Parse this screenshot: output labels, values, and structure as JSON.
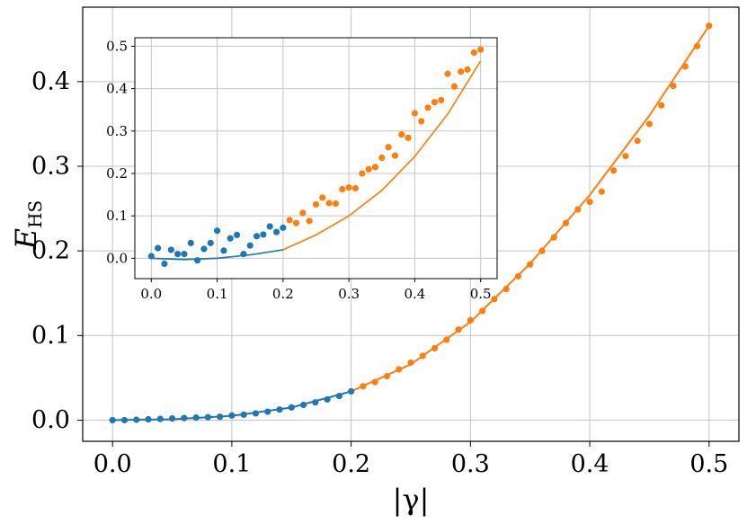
{
  "colors": {
    "blue": "#1f77b4",
    "orange": "#ff7f0e",
    "grid": "#c4c4c4",
    "axis": "#000000"
  },
  "chart_data": [
    {
      "type": "scatter",
      "role": "main",
      "xlabel": "|γ|",
      "ylabel": "E",
      "ylabel_subscript": "HS",
      "xlim": [
        -0.025,
        0.525
      ],
      "ylim": [
        -0.025,
        0.488
      ],
      "xticks": [
        0.0,
        0.1,
        0.2,
        0.3,
        0.4,
        0.5
      ],
      "xtick_labels": [
        "0.0",
        "0.1",
        "0.2",
        "0.3",
        "0.4",
        "0.5"
      ],
      "yticks": [
        0.0,
        0.1,
        0.2,
        0.3,
        0.4
      ],
      "ytick_labels": [
        "0.0",
        "0.1",
        "0.2",
        "0.3",
        "0.4"
      ],
      "grid": true,
      "series": [
        {
          "color": "blue",
          "kind": "points",
          "x": [
            0.0,
            0.01,
            0.02,
            0.03,
            0.04,
            0.05,
            0.06,
            0.07,
            0.08,
            0.09,
            0.1,
            0.11,
            0.12,
            0.13,
            0.14,
            0.15,
            0.16,
            0.17,
            0.18,
            0.19,
            0.2
          ],
          "y": [
            0.0,
            0.0,
            0.0005,
            0.001,
            0.0015,
            0.002,
            0.0025,
            0.003,
            0.0035,
            0.004,
            0.0055,
            0.0065,
            0.008,
            0.01,
            0.0125,
            0.015,
            0.018,
            0.021,
            0.0245,
            0.0285,
            0.034
          ]
        },
        {
          "color": "orange",
          "kind": "points",
          "x": [
            0.21,
            0.22,
            0.23,
            0.24,
            0.25,
            0.26,
            0.27,
            0.28,
            0.29,
            0.3,
            0.31,
            0.32,
            0.33,
            0.34,
            0.35,
            0.36,
            0.37,
            0.38,
            0.39,
            0.4,
            0.41,
            0.42,
            0.43,
            0.44,
            0.45,
            0.46,
            0.47,
            0.48,
            0.49,
            0.5
          ],
          "y": [
            0.04,
            0.045,
            0.052,
            0.06,
            0.068,
            0.076,
            0.085,
            0.095,
            0.107,
            0.118,
            0.129,
            0.143,
            0.155,
            0.17,
            0.184,
            0.2,
            0.216,
            0.233,
            0.249,
            0.258,
            0.27,
            0.295,
            0.312,
            0.33,
            0.35,
            0.372,
            0.395,
            0.418,
            0.442,
            0.466
          ]
        },
        {
          "color": "blue",
          "kind": "line",
          "x": [
            0.0,
            0.05,
            0.1,
            0.15,
            0.2
          ],
          "y": [
            0.0,
            0.001,
            0.005,
            0.015,
            0.034
          ]
        },
        {
          "color": "orange",
          "kind": "line",
          "x": [
            0.2,
            0.25,
            0.3,
            0.35,
            0.4,
            0.45,
            0.5
          ],
          "y": [
            0.034,
            0.066,
            0.116,
            0.185,
            0.266,
            0.36,
            0.466
          ]
        }
      ]
    },
    {
      "type": "scatter",
      "role": "inset",
      "xlim": [
        -0.025,
        0.525
      ],
      "ylim": [
        -0.048,
        0.52
      ],
      "xticks": [
        0.0,
        0.1,
        0.2,
        0.3,
        0.4,
        0.5
      ],
      "xtick_labels": [
        "0.0",
        "0.1",
        "0.2",
        "0.3",
        "0.4",
        "0.5"
      ],
      "yticks": [
        0.0,
        0.1,
        0.2,
        0.3,
        0.4,
        0.5
      ],
      "ytick_labels": [
        "0.0",
        "0.1",
        "0.2",
        "0.3",
        "0.4",
        "0.5"
      ],
      "grid": true,
      "series": [
        {
          "color": "blue",
          "kind": "points",
          "x": [
            0.0,
            0.01,
            0.02,
            0.03,
            0.04,
            0.05,
            0.06,
            0.07,
            0.08,
            0.09,
            0.1,
            0.11,
            0.12,
            0.13,
            0.14,
            0.15,
            0.16,
            0.17,
            0.18,
            0.19,
            0.2
          ],
          "y": [
            0.005,
            0.024,
            -0.013,
            0.02,
            0.01,
            0.01,
            0.036,
            -0.005,
            0.022,
            0.036,
            0.065,
            0.018,
            0.047,
            0.055,
            0.01,
            0.03,
            0.052,
            0.056,
            0.075,
            0.062,
            0.072
          ]
        },
        {
          "color": "orange",
          "kind": "points",
          "x": [
            0.21,
            0.22,
            0.23,
            0.24,
            0.25,
            0.26,
            0.27,
            0.28,
            0.29,
            0.3,
            0.31,
            0.32,
            0.33,
            0.34,
            0.35,
            0.36,
            0.37,
            0.38,
            0.39,
            0.4,
            0.41,
            0.42,
            0.43,
            0.44,
            0.45,
            0.46,
            0.47,
            0.48,
            0.49,
            0.5
          ],
          "y": [
            0.09,
            0.083,
            0.107,
            0.088,
            0.127,
            0.143,
            0.13,
            0.129,
            0.163,
            0.167,
            0.165,
            0.2,
            0.21,
            0.215,
            0.237,
            0.262,
            0.242,
            0.292,
            0.284,
            0.342,
            0.323,
            0.355,
            0.368,
            0.373,
            0.435,
            0.405,
            0.44,
            0.445,
            0.485,
            0.492
          ]
        },
        {
          "color": "blue",
          "kind": "line",
          "x": [
            0.0,
            0.05,
            0.1,
            0.15,
            0.2
          ],
          "y": [
            0.0,
            -0.003,
            0.0,
            0.008,
            0.02
          ]
        },
        {
          "color": "orange",
          "kind": "line",
          "x": [
            0.2,
            0.25,
            0.3,
            0.35,
            0.4,
            0.45,
            0.5
          ],
          "y": [
            0.02,
            0.055,
            0.1,
            0.16,
            0.24,
            0.34,
            0.465
          ]
        }
      ]
    }
  ]
}
